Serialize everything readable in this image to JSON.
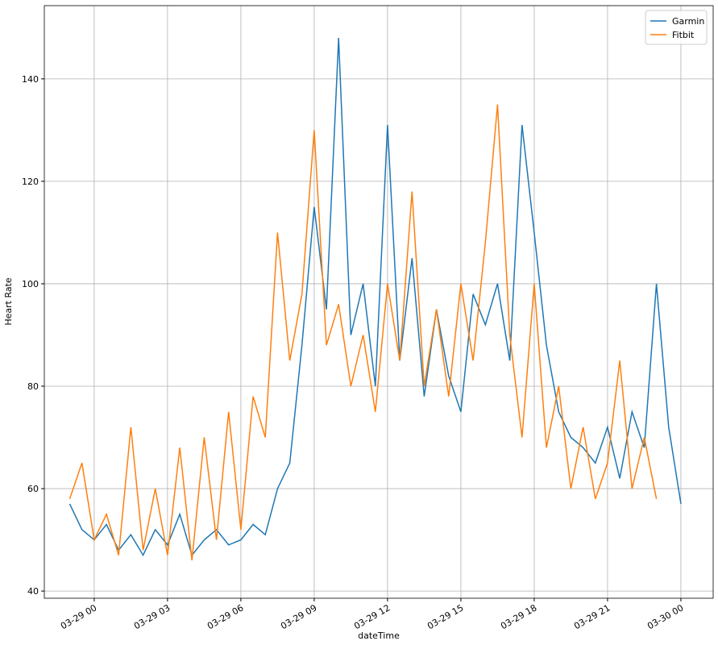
{
  "chart_data": {
    "type": "line",
    "xlabel": "dateTime",
    "ylabel": "Heart Rate",
    "x": [
      -1,
      -0.5,
      0,
      0.5,
      1,
      1.5,
      2,
      2.5,
      3,
      3.5,
      4,
      4.5,
      5,
      5.5,
      6,
      6.5,
      7,
      7.5,
      8,
      8.5,
      9,
      9.5,
      10,
      10.5,
      11,
      11.5,
      12,
      12.5,
      13,
      13.5,
      14,
      14.5,
      15,
      15.5,
      16,
      16.5,
      17,
      17.5,
      18,
      18.5,
      19,
      19.5,
      20,
      20.5,
      21,
      21.5,
      22,
      22.5,
      23,
      23.5,
      24
    ],
    "series": [
      {
        "name": "Garmin",
        "color": "#1f77b4",
        "values": [
          57,
          52,
          50,
          53,
          48,
          51,
          47,
          52,
          49,
          55,
          47,
          50,
          52,
          49,
          50,
          53,
          51,
          60,
          65,
          88,
          115,
          95,
          148,
          90,
          100,
          80,
          131,
          85,
          105,
          78,
          95,
          82,
          75,
          98,
          92,
          100,
          85,
          131,
          110,
          88,
          75,
          70,
          68,
          65,
          72,
          62,
          75,
          68,
          100,
          72,
          57
        ]
      },
      {
        "name": "Fitbit",
        "color": "#ff7f0e",
        "values": [
          58,
          65,
          50,
          55,
          47,
          72,
          48,
          60,
          47,
          68,
          46,
          70,
          50,
          75,
          52,
          78,
          70,
          110,
          85,
          98,
          130,
          88,
          96,
          80,
          90,
          75,
          100,
          85,
          118,
          80,
          95,
          78,
          100,
          85,
          108,
          135,
          90,
          70,
          100,
          68,
          80,
          60,
          72,
          58,
          65,
          85,
          60,
          70,
          58,
          null,
          null
        ]
      }
    ],
    "xlim": [
      -2.04,
      25.32
    ],
    "xticks": [
      {
        "value": 0,
        "label": "03-29 00"
      },
      {
        "value": 3,
        "label": "03-29 03"
      },
      {
        "value": 6,
        "label": "03-29 06"
      },
      {
        "value": 9,
        "label": "03-29 09"
      },
      {
        "value": 12,
        "label": "03-29 12"
      },
      {
        "value": 15,
        "label": "03-29 15"
      },
      {
        "value": 18,
        "label": "03-29 18"
      },
      {
        "value": 21,
        "label": "03-29 21"
      },
      {
        "value": 24,
        "label": "03-30 00"
      }
    ],
    "ylim": [
      38.6,
      154.3
    ],
    "yticks": [
      40,
      60,
      80,
      100,
      120,
      140
    ],
    "grid": true,
    "legend": "upper right"
  }
}
